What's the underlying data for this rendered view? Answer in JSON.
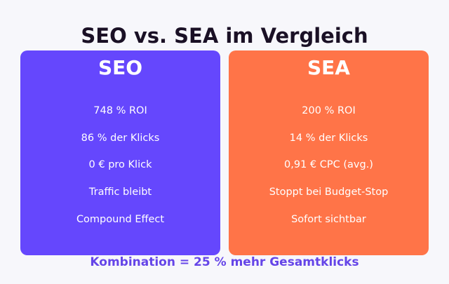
{
  "page": {
    "title": "SEO vs. SEA im Vergleich"
  },
  "seo": {
    "heading": "SEO",
    "items": [
      "748 % ROI",
      "86 % der Klicks",
      "0 € pro Klick",
      "Traffic bleibt",
      "Compound Effect"
    ]
  },
  "sea": {
    "heading": "SEA",
    "items": [
      "200 % ROI",
      "14 % der Klicks",
      "0,91 € CPC (avg.)",
      "Stoppt bei Budget-Stop",
      "Sofort sichtbar"
    ]
  },
  "footer": {
    "text": "Kombination = 25 % mehr Gesamtklicks"
  },
  "colors": {
    "background": "#f7f7fb",
    "title": "#1a1025",
    "seo_card": "#6547fd",
    "sea_card": "#ff7448",
    "card_text": "#ffffff",
    "footer_text": "#6545e8"
  }
}
